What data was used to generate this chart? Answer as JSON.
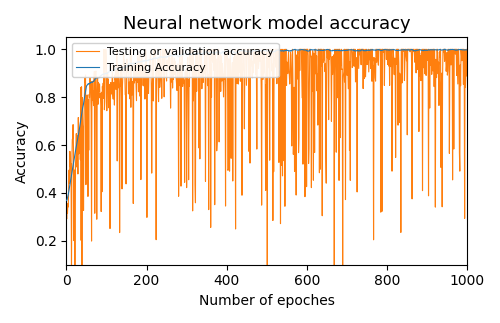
{
  "title": "Neural network model accuracy",
  "xlabel": "Number of epoches",
  "ylabel": "Accuracy",
  "xlim": [
    0,
    1000
  ],
  "ylim": [
    0.1,
    1.05
  ],
  "train_color": "#1f77b4",
  "val_color": "#ff7f0e",
  "train_label": "Training Accuracy",
  "val_label": "Testing or validation accuracy",
  "seed": 7,
  "n_epochs": 1001
}
